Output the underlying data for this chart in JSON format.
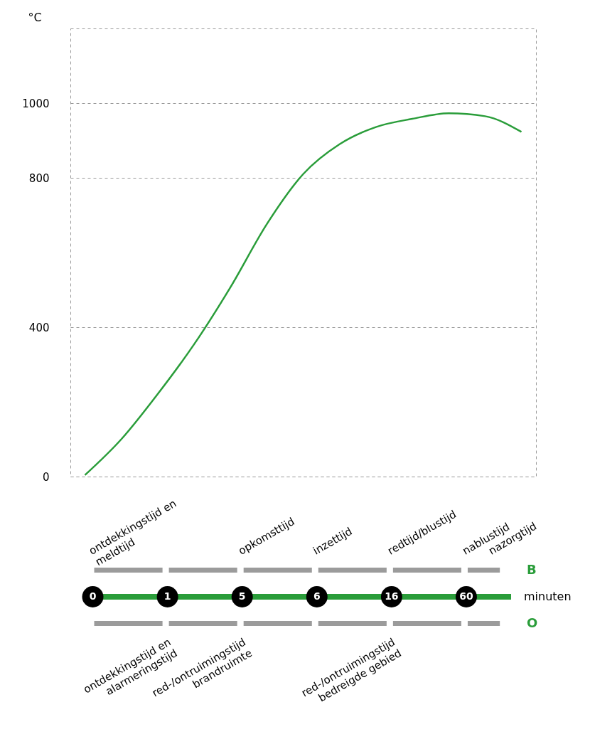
{
  "chart_data": [
    {
      "type": "line",
      "ylabel": "°C",
      "categories": [
        null,
        null,
        null,
        null,
        null,
        null,
        null,
        null,
        null,
        null,
        null,
        null,
        null
      ],
      "series": [
        {
          "color": "#2a9d3a",
          "values": [
            4,
            100,
            221,
            354,
            507,
            676,
            810,
            890,
            936,
            958,
            973,
            965,
            923
          ]
        }
      ],
      "ylim": [
        0,
        1200
      ],
      "yticks": [
        0,
        400,
        800,
        1000
      ],
      "grid": "y"
    },
    {
      "type": "other",
      "categories": [
        "0",
        "1",
        "5",
        "6",
        "16",
        "60"
      ],
      "data_labels": true,
      "xlabel": "minuten",
      "y_categories": [
        "B",
        "O"
      ],
      "annotations": [
        {
          "text": "ontdekkingstijd en\nmeldtijd",
          "x": "0",
          "y": "B"
        },
        {
          "text": "opkomsttijd",
          "x": "5",
          "y": "B"
        },
        {
          "text": "inzettijd",
          "x": "6",
          "y": "B"
        },
        {
          "text": "redtijd/blustijd",
          "x": "16",
          "y": "B"
        },
        {
          "text": "nablustijd",
          "x": "60",
          "y": "B"
        },
        {
          "text": "nazorgtijd",
          "x": "60",
          "y": "B"
        },
        {
          "text": "ontdekkingstijd en\nalarmeringstijd",
          "x": "1",
          "y": "O"
        },
        {
          "text": "red-/ontruimingstijd\nbrandruimte",
          "x": "5",
          "y": "O"
        },
        {
          "text": "red-/ontruimingstijd\nbedreigde gebied",
          "x": "16",
          "y": "O"
        }
      ]
    }
  ]
}
